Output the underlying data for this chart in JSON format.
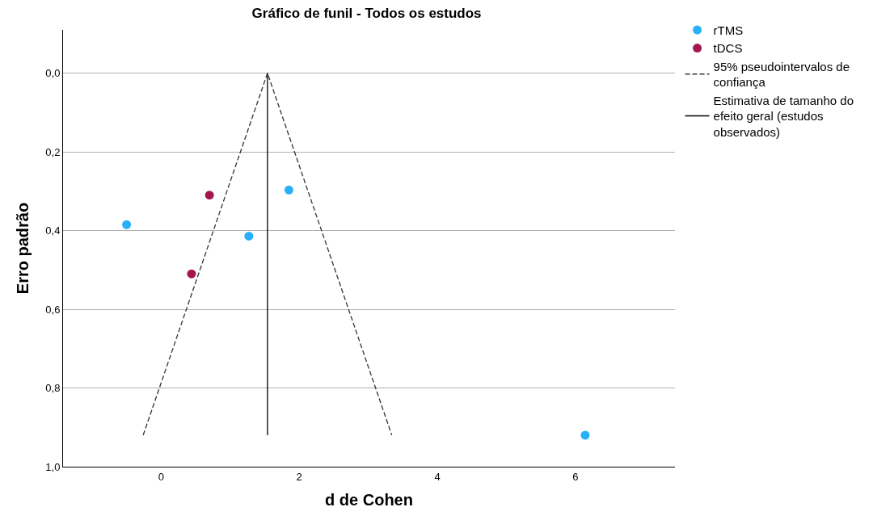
{
  "chart_data": {
    "type": "scatter",
    "title": "Gráfico de funil - Todos os estudos",
    "xlabel": "d de Cohen",
    "ylabel": "Erro padrão",
    "series": [
      {
        "name": "rTMS",
        "color": "#29b0f8",
        "marker": "circle",
        "x": [
          -0.5,
          1.27,
          1.85,
          6.14
        ],
        "values": [
          0.385,
          0.414,
          0.297,
          0.92
        ]
      },
      {
        "name": "tDCS",
        "color": "#a3174f",
        "marker": "circle",
        "x": [
          0.7,
          0.44
        ],
        "values": [
          0.31,
          0.51
        ]
      },
      {
        "name": "95% pseudointervalos de confiança",
        "color": "#333333",
        "type": "line",
        "marker": "none",
        "line_style": "dashed",
        "x": [
          -0.26,
          1.54,
          3.34
        ],
        "values": [
          0.92,
          0,
          0.92
        ]
      },
      {
        "name": "Estimativa de tamanho do efeito geral (estudos observados)",
        "color": "#000000",
        "type": "line",
        "marker": "none",
        "line_style": "solid",
        "x": [
          1.54,
          1.54
        ],
        "values": [
          0,
          0.92
        ]
      }
    ],
    "xlim": [
      -1.42,
      7.44
    ],
    "xticks": [
      0,
      2,
      4,
      6
    ],
    "ylim": [
      1.0,
      -0.11
    ],
    "yticks": [
      {
        "value": 0,
        "label": "0,0"
      },
      {
        "value": 0.2,
        "label": "0,2"
      },
      {
        "value": 0.4,
        "label": "0,4"
      },
      {
        "value": 0.6,
        "label": "0,6"
      },
      {
        "value": 0.8,
        "label": "0,8"
      },
      {
        "value": 1.0,
        "label": "1,0"
      }
    ],
    "grid": "y",
    "legend": "top right"
  }
}
